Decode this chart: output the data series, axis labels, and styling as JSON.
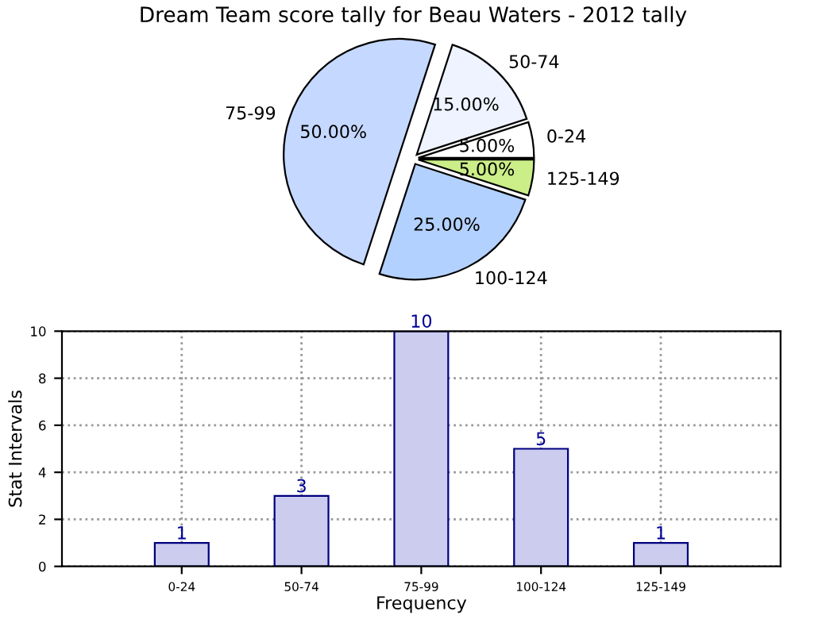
{
  "chart_data": [
    {
      "type": "pie",
      "title": "Dream Team score tally for Beau Waters - 2012 tally",
      "categories": [
        "0-24",
        "50-74",
        "75-99",
        "100-124",
        "125-149"
      ],
      "values": [
        5,
        15,
        50,
        25,
        5
      ],
      "colors": [
        "#ffffff",
        "#eef3ff",
        "#c5d8ff",
        "#b3d1ff",
        "#ccee88"
      ],
      "value_labels": [
        "5.00%",
        "15.00%",
        "50.00%",
        "25.00%",
        "5.00%"
      ]
    },
    {
      "type": "bar",
      "categories": [
        "0-24",
        "50-74",
        "75-99",
        "100-124",
        "125-149"
      ],
      "values": [
        1,
        3,
        10,
        5,
        1
      ],
      "color": "#ccccee",
      "xlabel": "Frequency",
      "ylabel": "Stat Intervals",
      "ylim": [
        0,
        10
      ],
      "yticks": [
        0,
        2,
        4,
        6,
        8,
        10
      ],
      "grid": true,
      "data_labels": true
    }
  ]
}
